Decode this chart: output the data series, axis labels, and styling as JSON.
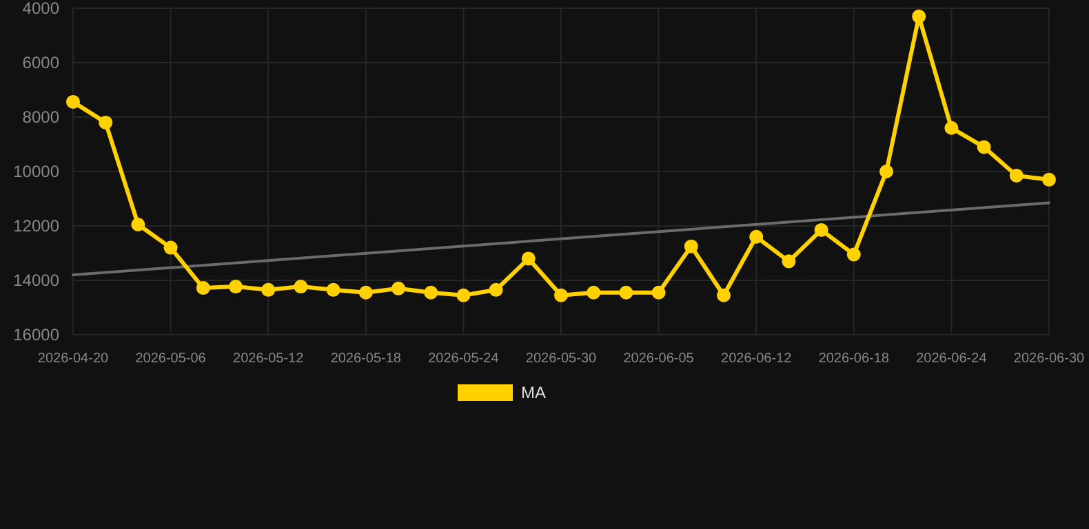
{
  "chart_data": {
    "type": "line",
    "categories": [
      "2026-04-20",
      null,
      null,
      "2026-05-06",
      null,
      null,
      "2026-05-12",
      null,
      null,
      "2026-05-18",
      null,
      null,
      "2026-05-24",
      null,
      null,
      "2026-05-30",
      null,
      null,
      "2026-06-05",
      null,
      null,
      "2026-06-12",
      null,
      null,
      "2026-06-18",
      null,
      null,
      "2026-06-24",
      null,
      null,
      "2026-06-30"
    ],
    "series": [
      {
        "name": "MA",
        "color": "#ffd100",
        "marker": "circle",
        "values": [
          7440,
          8200,
          11950,
          12800,
          14280,
          14230,
          14350,
          14230,
          14350,
          14450,
          14300,
          14450,
          14550,
          14350,
          13200,
          14550,
          14450,
          14450,
          14450,
          12750,
          14550,
          12400,
          13300,
          12150,
          13050,
          10000,
          4300,
          8400,
          9100,
          10150,
          10300
        ]
      },
      {
        "color": "#6b6b6b",
        "marker": "none",
        "values": [
          13800,
          null,
          null,
          null,
          null,
          null,
          null,
          null,
          null,
          null,
          null,
          null,
          null,
          null,
          null,
          null,
          null,
          null,
          null,
          null,
          null,
          null,
          null,
          null,
          null,
          null,
          null,
          null,
          null,
          null,
          11150
        ]
      }
    ],
    "ylim": [
      16000,
      4000
    ],
    "yticks": [
      4000,
      6000,
      8000,
      10000,
      12000,
      14000,
      16000
    ],
    "grid": true,
    "legend": "bottom"
  }
}
